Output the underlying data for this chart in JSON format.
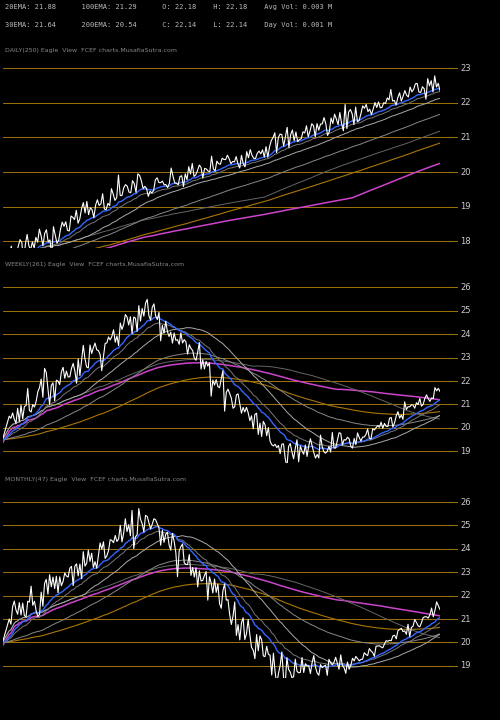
{
  "background_color": "#000000",
  "text_color": "#cccccc",
  "title_text_1": "20EMA: 21.88      100EMA: 21.29      O: 22.18    H: 22.18    Avg Vol: 0.003 M",
  "title_text_2": "30EMA: 21.64      200EMA: 20.54      C: 22.14    L: 22.14    Day Vol: 0.001 M",
  "label_daily": "DAILY(250) Eagle  View  FCEF charts.MusafiaSutra.com",
  "label_weekly": "WEEKLY(261) Eagle  View  FCEF charts.MusafiaSutra.com",
  "label_monthly": "MONTHLY(47) Eagle  View  FCEF charts.MusafiaSutra.com",
  "hline_color": "#b8860b",
  "hline_lw": 0.6,
  "white_lw": 0.8,
  "blue_color": "#3366ff",
  "pink_color": "#cc44cc",
  "orange_color": "#aa7700",
  "grey1": "#666666",
  "grey2": "#888888",
  "grey3": "#aaaaaa",
  "panel1_ylim": [
    17.8,
    23.2
  ],
  "panel1_yticks": [
    18,
    19,
    20,
    21,
    22,
    23
  ],
  "panel2_ylim": [
    18.5,
    26.5
  ],
  "panel2_yticks": [
    19,
    20,
    21,
    22,
    23,
    24,
    25,
    26
  ],
  "panel3_ylim": [
    18.5,
    26.5
  ],
  "panel3_yticks": [
    19,
    20,
    21,
    22,
    23,
    24,
    25,
    26
  ]
}
